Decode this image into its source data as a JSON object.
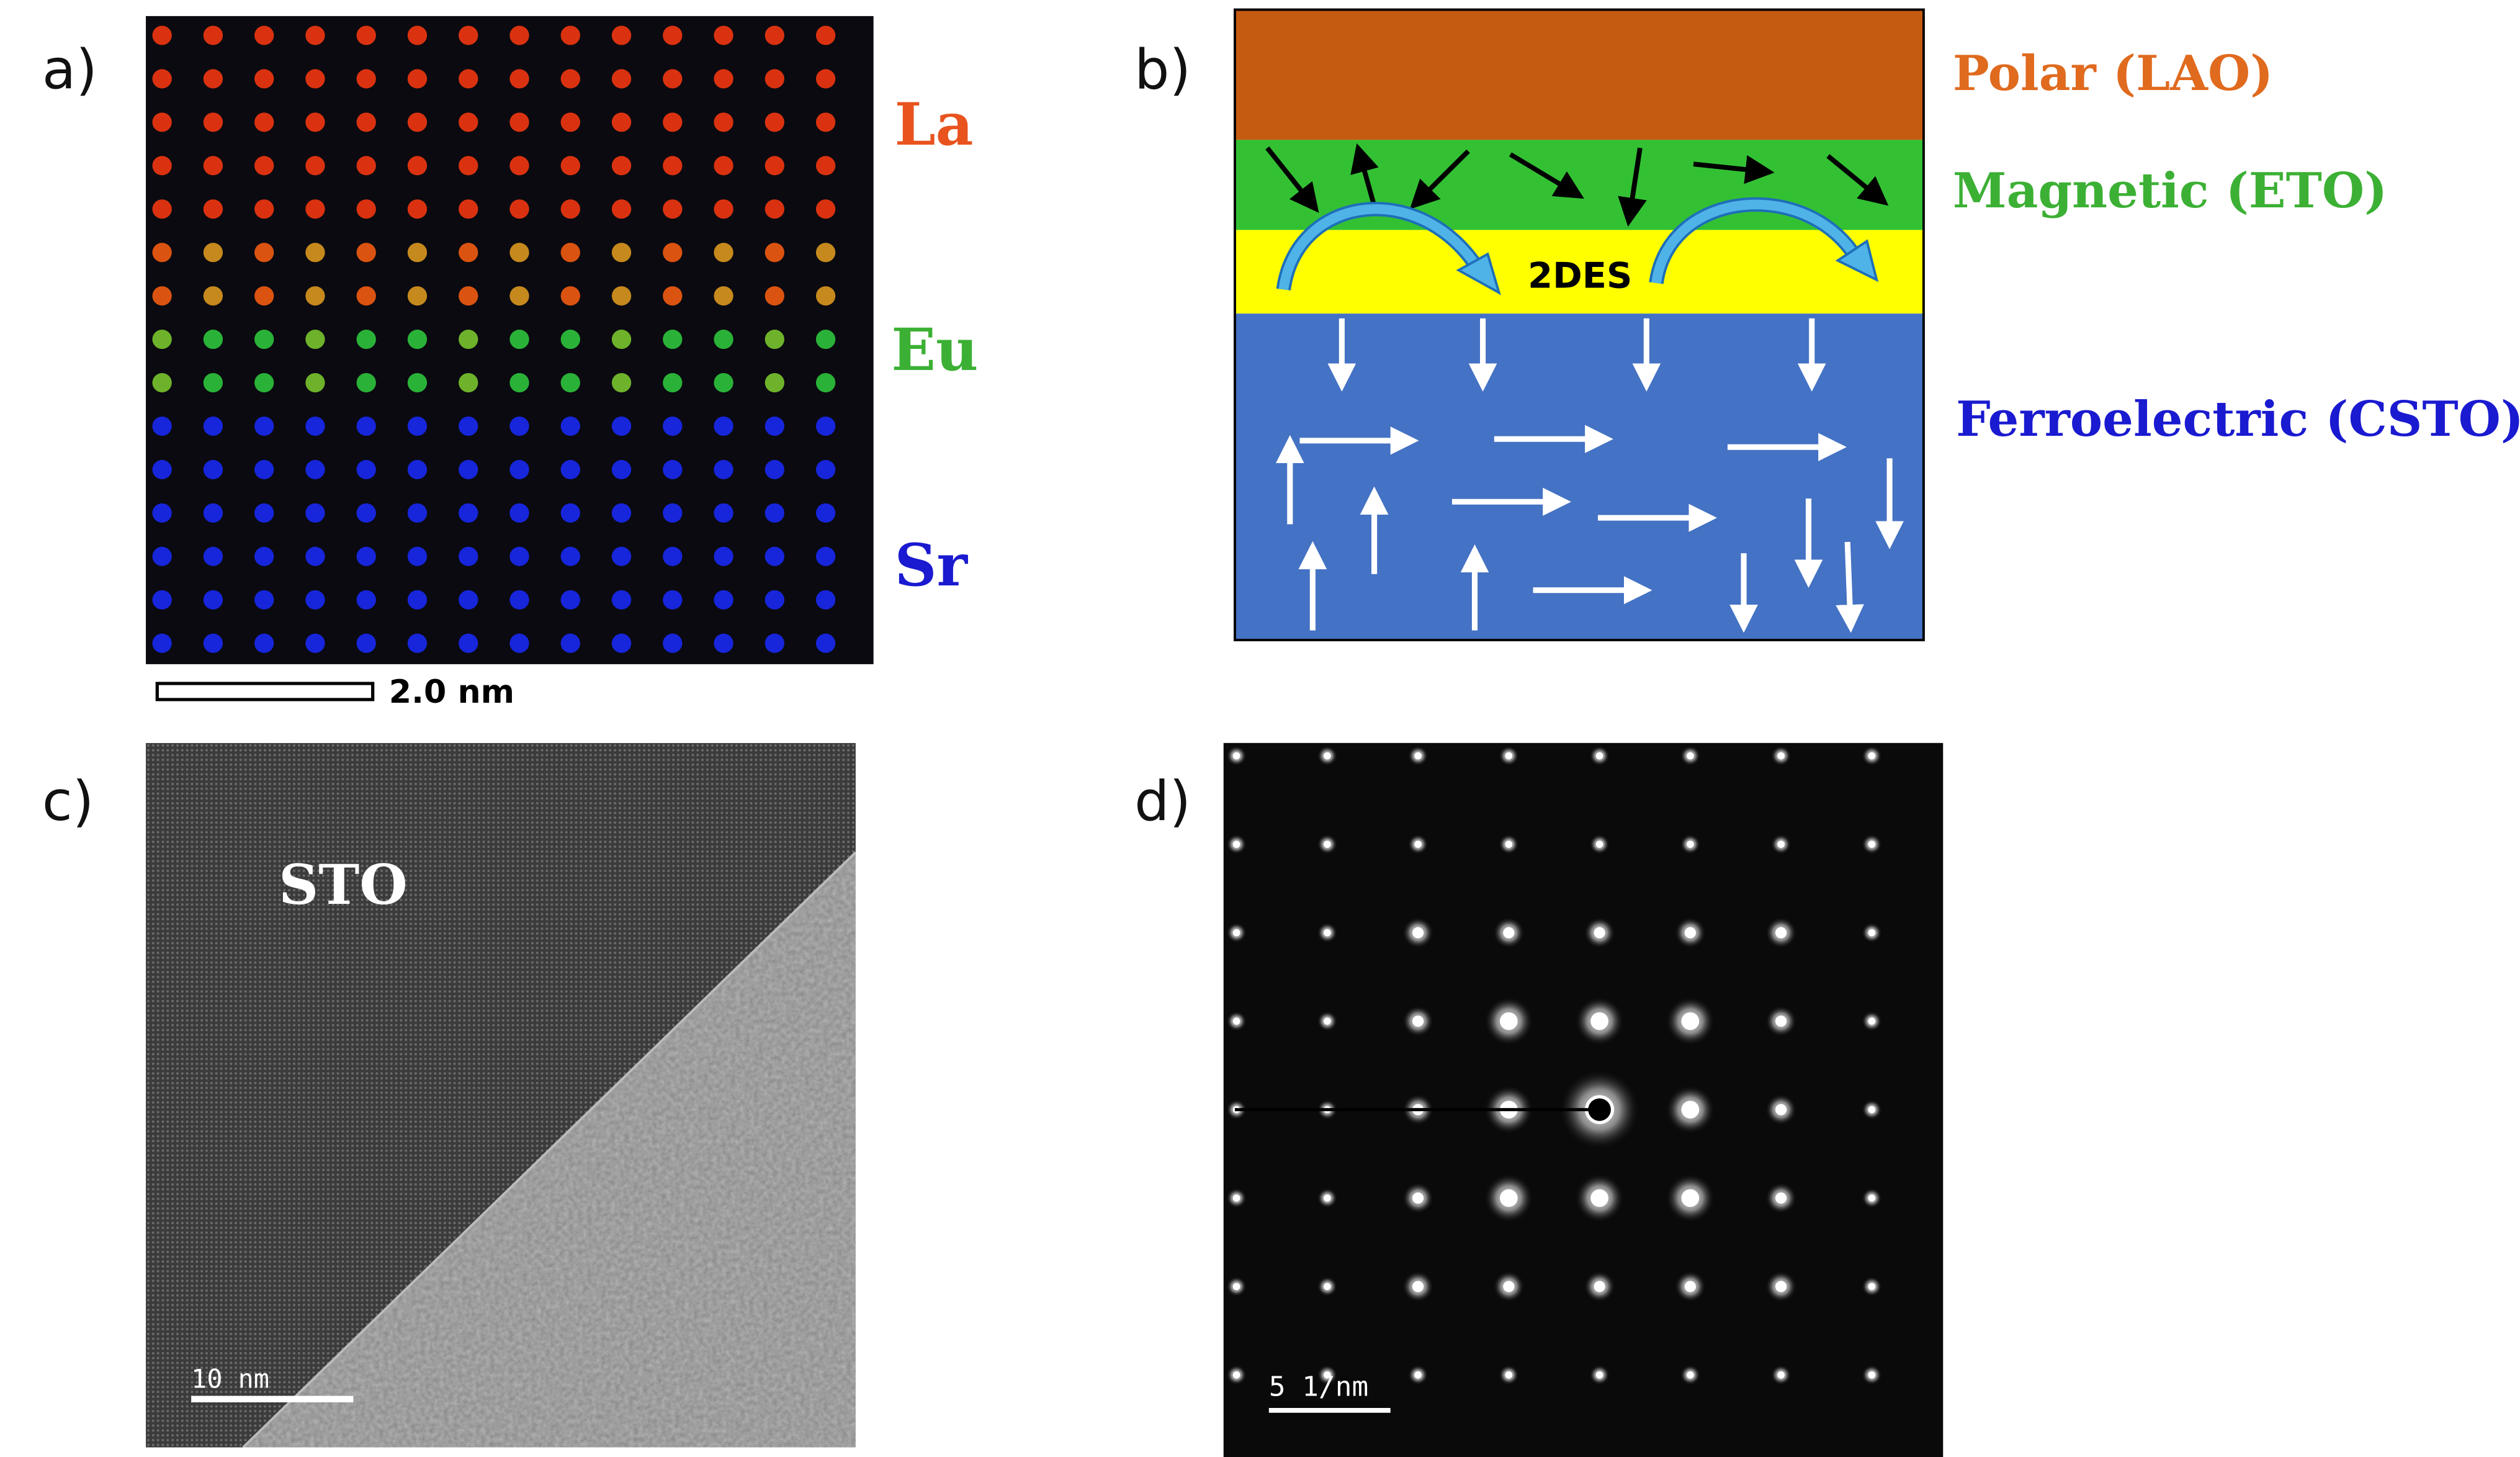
{
  "panels": [
    {
      "label": "a)",
      "elements": [
        "La",
        "Eu",
        "Sr"
      ],
      "scale_bar": "2.0 nm"
    },
    {
      "label": "b)",
      "layers": [
        "Polar (LAO)",
        "Magnetic (ETO)",
        "Ferroelectric (CSTO)"
      ],
      "interface": "2DES"
    },
    {
      "label": "c)",
      "annotation": "STO",
      "scale_bar": "10 nm"
    },
    {
      "label": "d)",
      "scale_bar": "5 1/nm"
    }
  ]
}
